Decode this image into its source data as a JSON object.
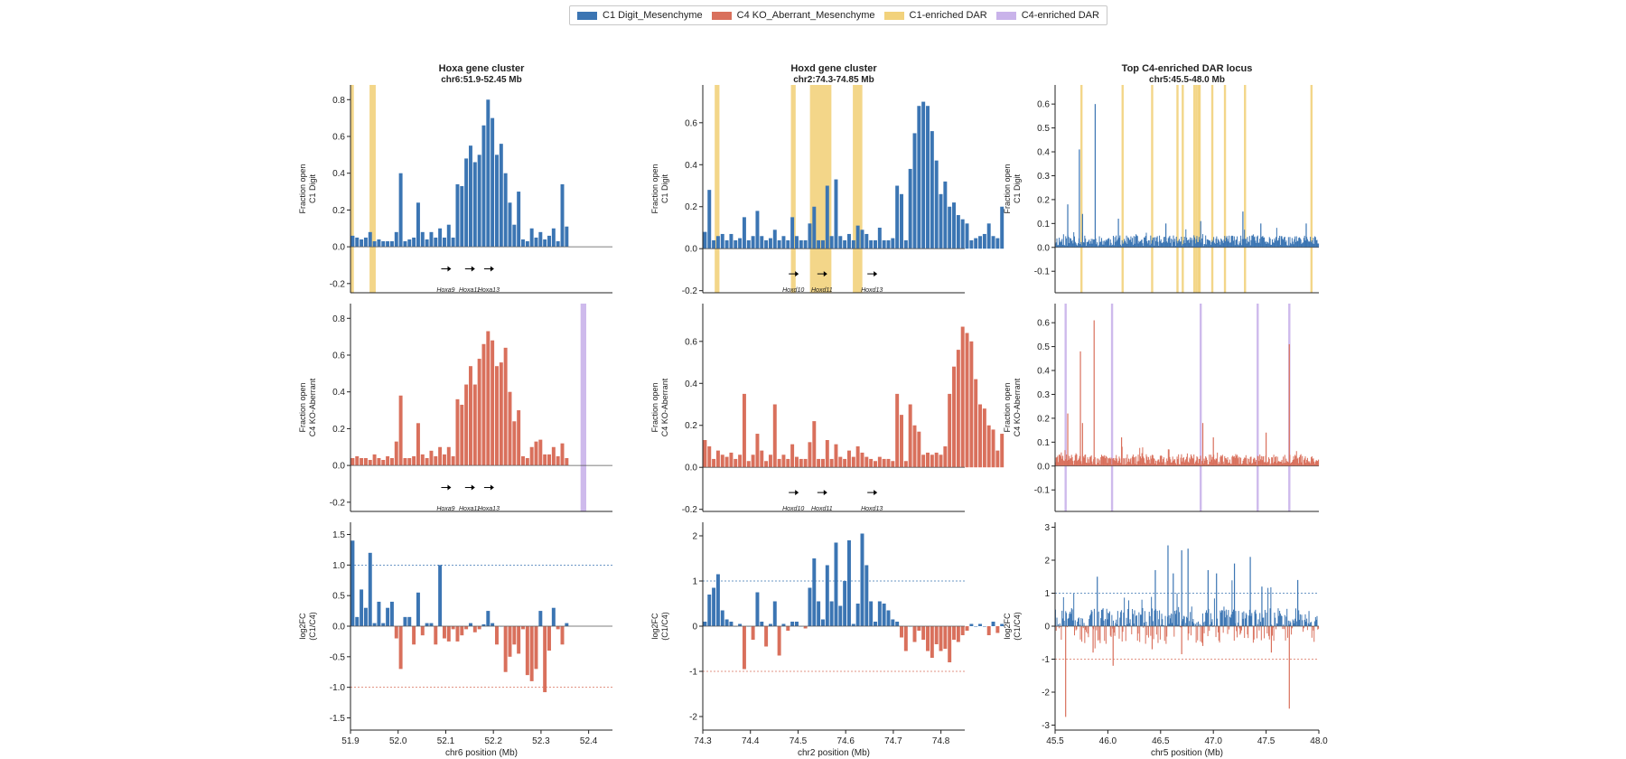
{
  "legend": {
    "items": [
      {
        "label": "C1 Digit_Mesenchyme",
        "color": "#3b75b3"
      },
      {
        "label": "C4 KO_Aberrant_Mesenchyme",
        "color": "#d9705c"
      },
      {
        "label": "C1-enriched DAR",
        "color": "#f2d27c"
      },
      {
        "label": "C4-enriched DAR",
        "color": "#c9b3ea"
      }
    ]
  },
  "colors": {
    "c1": "#3b75b3",
    "c4": "#d9705c",
    "c1_dar": "#f2d27c",
    "c4_dar": "#c9b3ea"
  },
  "row_labels": [
    [
      "Fraction open",
      "C1 Digit"
    ],
    [
      "Fraction open",
      "C4 KO-Aberrant"
    ],
    [
      "log2FC",
      "(C1/C4)"
    ]
  ],
  "chart_data": [
    {
      "type": "bar",
      "panel": "Hoxa",
      "title": "Hoxa gene cluster",
      "subtitle": "chr6:51.9-52.45 Mb",
      "xlabel": "chr6 position (Mb)",
      "xlim": [
        51.9,
        52.45
      ],
      "xticks": [
        51.9,
        52.0,
        52.1,
        52.2,
        52.3,
        52.4
      ],
      "x_start": 51.9,
      "x_step": 0.00917,
      "bar_width": 0.0075,
      "c1_values": [
        0.06,
        0.05,
        0.04,
        0.05,
        0.08,
        0.03,
        0.04,
        0.03,
        0.03,
        0.03,
        0.08,
        0.4,
        0.03,
        0.04,
        0.05,
        0.24,
        0.08,
        0.04,
        0.08,
        0.05,
        0.1,
        0.05,
        0.12,
        0.05,
        0.34,
        0.33,
        0.48,
        0.55,
        0.46,
        0.5,
        0.66,
        0.8,
        0.7,
        0.5,
        0.56,
        0.4,
        0.24,
        0.12,
        0.3,
        0.04,
        0.03,
        0.1,
        0.05,
        0.08,
        0.04,
        0.06,
        0.1,
        0.03,
        0.34,
        0.11
      ],
      "c4_values": [
        0.04,
        0.05,
        0.04,
        0.04,
        0.03,
        0.06,
        0.04,
        0.03,
        0.05,
        0.04,
        0.13,
        0.38,
        0.04,
        0.04,
        0.05,
        0.23,
        0.06,
        0.04,
        0.08,
        0.05,
        0.1,
        0.06,
        0.1,
        0.05,
        0.36,
        0.33,
        0.44,
        0.54,
        0.44,
        0.58,
        0.66,
        0.73,
        0.68,
        0.54,
        0.56,
        0.64,
        0.4,
        0.24,
        0.3,
        0.05,
        0.04,
        0.1,
        0.13,
        0.14,
        0.06,
        0.06,
        0.1,
        0.05,
        0.12,
        0.04
      ],
      "lfc_values": [
        1.4,
        0.15,
        0.6,
        0.3,
        1.2,
        0.05,
        0.4,
        0.05,
        0.3,
        0.4,
        -0.2,
        -0.7,
        0.15,
        0.15,
        -0.3,
        0.55,
        -0.15,
        0.05,
        0.05,
        -0.3,
        1.0,
        -0.2,
        -0.25,
        -0.05,
        -0.25,
        -0.15,
        -0.05,
        0.05,
        -0.1,
        -0.05,
        0.03,
        0.25,
        0.05,
        -0.3,
        0.0,
        -0.75,
        -0.5,
        -0.3,
        -0.45,
        -0.05,
        -0.8,
        -0.9,
        -0.7,
        0.25,
        -1.08,
        -0.4,
        0.3,
        -0.05,
        -0.3,
        0.05
      ],
      "frac_ylim": [
        -0.25,
        0.88
      ],
      "frac_yticks": [
        -0.2,
        0.0,
        0.2,
        0.4,
        0.6,
        0.8
      ],
      "lfc_ylim": [
        -1.7,
        1.7
      ],
      "lfc_yticks": [
        -1.5,
        -1.0,
        -0.5,
        0.0,
        0.5,
        1.0,
        1.5
      ],
      "lfc_threshold": 1.0,
      "c1_dars": [
        [
          51.9,
          51.907
        ],
        [
          51.94,
          51.953
        ]
      ],
      "c4_dars": [
        [
          52.383,
          52.395
        ]
      ],
      "genes": [
        {
          "name": "Hoxa9",
          "x": 52.1
        },
        {
          "name": "Hoxa11",
          "x": 52.15
        },
        {
          "name": "Hoxa13",
          "x": 52.19
        }
      ]
    },
    {
      "type": "bar",
      "panel": "Hoxd",
      "title": "Hoxd gene cluster",
      "subtitle": "chr2:74.3-74.85 Mb",
      "xlabel": "chr2 position (Mb)",
      "xlim": [
        74.3,
        74.85
      ],
      "xticks": [
        74.3,
        74.4,
        74.5,
        74.6,
        74.7,
        74.8
      ],
      "x_start": 74.3,
      "x_step": 0.00917,
      "bar_width": 0.0075,
      "c1_values": [
        0.08,
        0.28,
        0.04,
        0.06,
        0.07,
        0.04,
        0.07,
        0.04,
        0.05,
        0.15,
        0.04,
        0.06,
        0.18,
        0.06,
        0.04,
        0.05,
        0.09,
        0.04,
        0.06,
        0.04,
        0.15,
        0.06,
        0.04,
        0.04,
        0.12,
        0.2,
        0.04,
        0.04,
        0.3,
        0.06,
        0.33,
        0.06,
        0.04,
        0.07,
        0.04,
        0.11,
        0.09,
        0.07,
        0.04,
        0.04,
        0.1,
        0.04,
        0.04,
        0.05,
        0.3,
        0.26,
        0.04,
        0.38,
        0.55,
        0.68,
        0.7,
        0.68,
        0.56,
        0.42,
        0.26,
        0.32,
        0.2,
        0.22,
        0.16,
        0.14,
        0.12,
        0.04,
        0.05,
        0.06,
        0.07,
        0.12,
        0.06,
        0.05,
        0.2
      ],
      "c4_values": [
        0.13,
        0.1,
        0.04,
        0.08,
        0.06,
        0.05,
        0.07,
        0.04,
        0.06,
        0.35,
        0.03,
        0.06,
        0.16,
        0.08,
        0.03,
        0.06,
        0.3,
        0.04,
        0.06,
        0.04,
        0.11,
        0.05,
        0.04,
        0.04,
        0.12,
        0.22,
        0.04,
        0.04,
        0.13,
        0.04,
        0.11,
        0.05,
        0.04,
        0.08,
        0.05,
        0.1,
        0.07,
        0.05,
        0.04,
        0.03,
        0.05,
        0.04,
        0.04,
        0.03,
        0.35,
        0.25,
        0.03,
        0.3,
        0.2,
        0.17,
        0.06,
        0.07,
        0.06,
        0.07,
        0.06,
        0.1,
        0.35,
        0.48,
        0.56,
        0.67,
        0.64,
        0.6,
        0.42,
        0.3,
        0.28,
        0.2,
        0.18,
        0.08,
        0.16
      ],
      "lfc_values": [
        0.1,
        0.7,
        0.85,
        1.15,
        0.35,
        0.15,
        0.1,
        0.0,
        0.05,
        -0.95,
        0.0,
        -0.3,
        0.75,
        0.1,
        -0.45,
        0.05,
        0.55,
        -0.65,
        0.05,
        -0.1,
        0.1,
        0.1,
        0.0,
        -0.05,
        0.85,
        1.5,
        0.55,
        0.15,
        1.35,
        0.55,
        1.85,
        0.45,
        1.0,
        1.9,
        0.05,
        0.5,
        2.05,
        1.35,
        0.55,
        0.1,
        0.55,
        0.5,
        0.35,
        0.15,
        0.1,
        -0.25,
        -0.55,
        0.0,
        -0.35,
        -0.1,
        -0.3,
        -0.55,
        -0.7,
        -0.4,
        -0.55,
        -0.5,
        -0.8,
        -0.3,
        -0.35,
        -0.2,
        -0.1,
        0.05,
        0.0,
        0.05,
        0.0,
        -0.2,
        0.1,
        -0.15,
        0.05
      ],
      "frac_ylim": [
        -0.21,
        0.78
      ],
      "frac_yticks": [
        -0.2,
        0.0,
        0.2,
        0.4,
        0.6
      ],
      "lfc_ylim": [
        -2.3,
        2.3
      ],
      "lfc_yticks": [
        -2,
        -1,
        0,
        1,
        2
      ],
      "lfc_threshold": 1.0,
      "c1_dars": [
        [
          74.325,
          74.335
        ],
        [
          74.485,
          74.495
        ],
        [
          74.525,
          74.57
        ],
        [
          74.615,
          74.635
        ]
      ],
      "c4_dars": [],
      "genes": [
        {
          "name": "Hoxd10",
          "x": 74.49
        },
        {
          "name": "Hoxd11",
          "x": 74.55
        },
        {
          "name": "Hoxd13",
          "x": 74.655
        }
      ]
    },
    {
      "type": "bar",
      "panel": "chr5",
      "title": "Top C4-enriched DAR locus",
      "subtitle": "chr5:45.5-48.0 Mb",
      "xlabel": "chr5 position (Mb)",
      "xlim": [
        45.5,
        48.0
      ],
      "xticks": [
        45.5,
        46.0,
        46.5,
        47.0,
        47.5,
        48.0
      ],
      "dense_n": 360,
      "c1_peaks": [
        {
          "x": 45.62,
          "v": 0.18
        },
        {
          "x": 45.73,
          "v": 0.41
        },
        {
          "x": 45.76,
          "v": 0.14
        },
        {
          "x": 45.88,
          "v": 0.6
        },
        {
          "x": 46.1,
          "v": 0.12
        },
        {
          "x": 46.55,
          "v": 0.1
        },
        {
          "x": 46.88,
          "v": 0.11
        },
        {
          "x": 47.28,
          "v": 0.15
        },
        {
          "x": 47.45,
          "v": 0.1
        },
        {
          "x": 47.88,
          "v": 0.1
        }
      ],
      "c4_peaks": [
        {
          "x": 45.62,
          "v": 0.22
        },
        {
          "x": 45.74,
          "v": 0.48
        },
        {
          "x": 45.76,
          "v": 0.18
        },
        {
          "x": 45.87,
          "v": 0.61
        },
        {
          "x": 46.13,
          "v": 0.12
        },
        {
          "x": 46.9,
          "v": 0.18
        },
        {
          "x": 47.0,
          "v": 0.12
        },
        {
          "x": 47.5,
          "v": 0.14
        },
        {
          "x": 47.72,
          "v": 0.51
        }
      ],
      "lfc_pos_peaks": [
        {
          "x": 45.9,
          "v": 1.5
        },
        {
          "x": 46.45,
          "v": 1.7
        },
        {
          "x": 46.57,
          "v": 2.45
        },
        {
          "x": 46.62,
          "v": 1.6
        },
        {
          "x": 46.7,
          "v": 2.3
        },
        {
          "x": 46.76,
          "v": 2.35
        },
        {
          "x": 46.95,
          "v": 1.7
        },
        {
          "x": 47.03,
          "v": 1.6
        },
        {
          "x": 47.2,
          "v": 1.9
        },
        {
          "x": 47.35,
          "v": 2.1
        },
        {
          "x": 47.46,
          "v": 1.2
        },
        {
          "x": 47.8,
          "v": 1.4
        }
      ],
      "lfc_neg_peaks": [
        {
          "x": 45.6,
          "v": -2.75
        },
        {
          "x": 45.86,
          "v": -0.8
        },
        {
          "x": 46.05,
          "v": -1.2
        },
        {
          "x": 46.42,
          "v": -0.7
        },
        {
          "x": 46.7,
          "v": -0.85
        },
        {
          "x": 46.9,
          "v": -0.6
        },
        {
          "x": 47.55,
          "v": -0.8
        },
        {
          "x": 47.72,
          "v": -2.5
        }
      ],
      "frac_ylim": [
        -0.19,
        0.68
      ],
      "frac_yticks": [
        -0.1,
        0.0,
        0.1,
        0.2,
        0.3,
        0.4,
        0.5,
        0.6
      ],
      "lfc_ylim": [
        -3.15,
        3.15
      ],
      "lfc_yticks": [
        -3,
        -2,
        -1,
        0,
        1,
        2,
        3
      ],
      "lfc_threshold": 1.0,
      "c1_dars": [
        45.75,
        46.14,
        46.42,
        46.66,
        46.71,
        46.82,
        46.84,
        46.86,
        46.87,
        46.99,
        47.11,
        47.3,
        47.93
      ],
      "c4_dars": [
        45.6,
        46.04,
        46.88,
        47.42,
        47.72
      ],
      "genes": []
    }
  ]
}
